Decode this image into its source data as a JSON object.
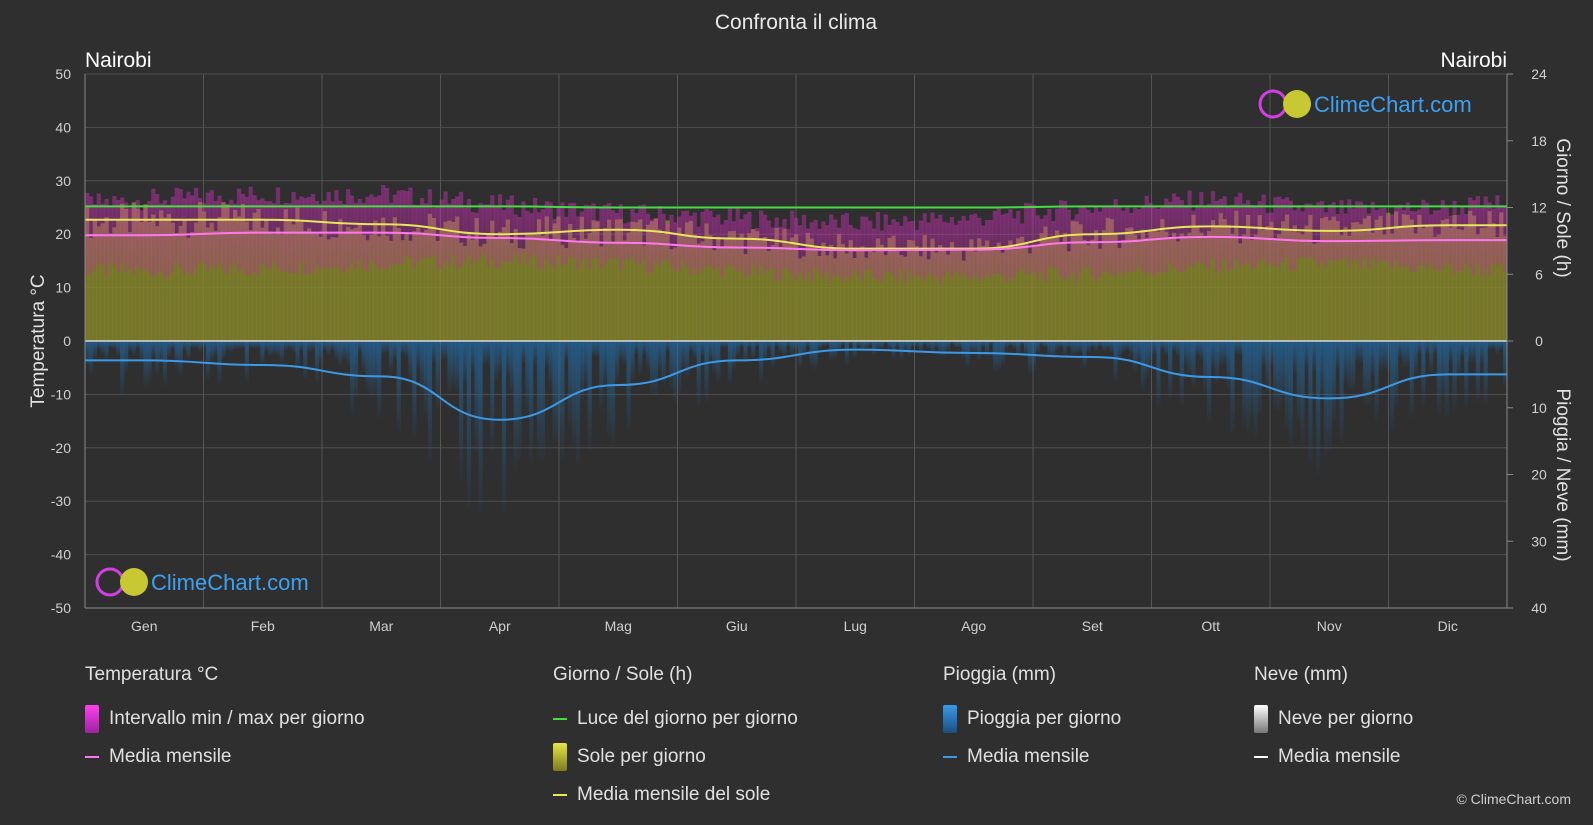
{
  "chart_data": {
    "type": "area",
    "title": "Confronta il clima",
    "location_left": "Nairobi",
    "location_right": "Nairobi",
    "categories": [
      "Gen",
      "Feb",
      "Mar",
      "Apr",
      "Mag",
      "Giu",
      "Lug",
      "Ago",
      "Set",
      "Ott",
      "Nov",
      "Dic"
    ],
    "y_left": {
      "label": "Temperatura °C",
      "min": -50,
      "max": 50,
      "ticks": [
        50,
        40,
        30,
        20,
        10,
        0,
        -10,
        -20,
        -30,
        -40,
        -50
      ]
    },
    "y_right_top": {
      "label": "Giorno / Sole (h)",
      "min": 0,
      "max": 24,
      "ticks": [
        24,
        18,
        12,
        6,
        0
      ]
    },
    "y_right_bottom": {
      "label": "Pioggia / Neve (mm)",
      "min": 0,
      "max": 40,
      "ticks": [
        0,
        10,
        20,
        30,
        40
      ]
    },
    "grid": true,
    "series": [
      {
        "name": "Luce del giorno per giorno",
        "unit": "h",
        "color": "#44dd44",
        "values": [
          12.1,
          12.1,
          12.1,
          12.1,
          12.0,
          12.0,
          12.0,
          12.0,
          12.1,
          12.1,
          12.1,
          12.1
        ]
      },
      {
        "name": "Media mensile del sole",
        "unit": "h",
        "color": "#e6e65a",
        "values": [
          10.9,
          10.9,
          10.5,
          9.6,
          10.0,
          9.2,
          8.3,
          8.3,
          9.6,
          10.3,
          9.9,
          10.4
        ]
      },
      {
        "name": "Media mensile",
        "group": "Temperatura °C",
        "unit": "°C",
        "color": "#ff77ee",
        "values": [
          19.8,
          20.3,
          20.3,
          19.3,
          18.4,
          17.5,
          17.0,
          17.1,
          18.5,
          19.5,
          18.7,
          18.9
        ]
      },
      {
        "name": "Intervallo min / max per giorno",
        "unit": "°C",
        "min": [
          13.0,
          13.5,
          14.5,
          15.0,
          14.5,
          13.0,
          12.0,
          12.0,
          12.5,
          14.0,
          14.5,
          13.5
        ],
        "max": [
          26.5,
          27.5,
          27.5,
          25.5,
          24.0,
          23.0,
          22.0,
          23.0,
          25.0,
          26.5,
          24.5,
          25.0
        ]
      },
      {
        "name": "Media mensile",
        "group": "Pioggia (mm)",
        "unit": "mm",
        "color": "#3a9ae8",
        "values": [
          2.9,
          3.6,
          5.3,
          11.8,
          6.6,
          2.9,
          1.3,
          1.8,
          2.4,
          5.4,
          8.6,
          5.0
        ]
      }
    ]
  },
  "legend": {
    "temperature": {
      "heading": "Temperatura °C",
      "items": [
        "Intervallo min / max per giorno",
        "Media mensile"
      ]
    },
    "sun": {
      "heading": "Giorno / Sole (h)",
      "items": [
        "Luce del giorno per giorno",
        "Sole per giorno",
        "Media mensile del sole"
      ]
    },
    "rain": {
      "heading": "Pioggia (mm)",
      "items": [
        "Pioggia per giorno",
        "Media mensile"
      ]
    },
    "snow": {
      "heading": "Neve (mm)",
      "items": [
        "Neve per giorno",
        "Media mensile"
      ]
    }
  },
  "watermark": "ClimeChart.com",
  "copyright": "© ClimeChart.com",
  "colors": {
    "background": "#2f2f2f",
    "daylight": "#44dd44",
    "sunshine_fill": "#8a8a2a",
    "sunshine_line": "#e6e65a",
    "temp_range": "#d22fc0",
    "temp_mean": "#ff77ee",
    "rain": "#1f6fb0",
    "rain_mean": "#3a9ae8",
    "watermark": "#3da0f0"
  }
}
